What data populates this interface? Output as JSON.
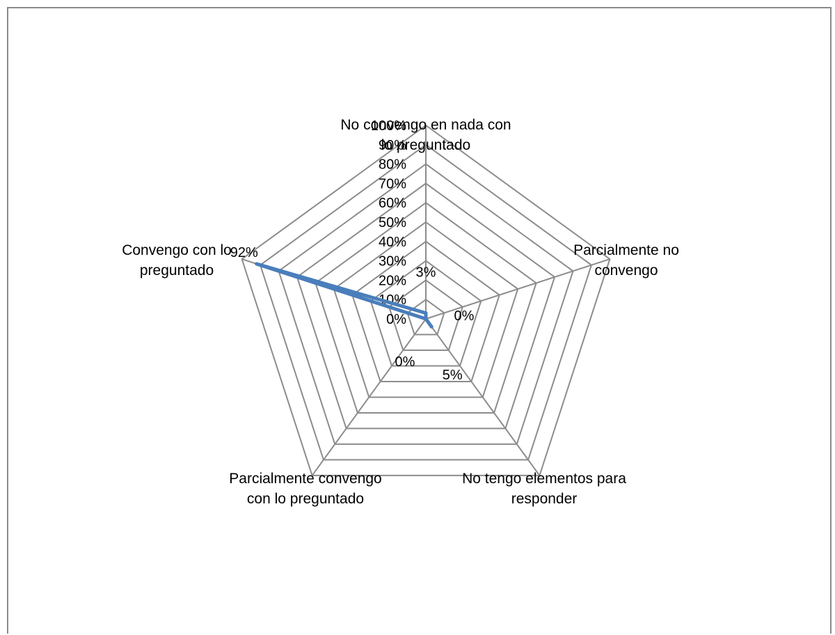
{
  "chart_data": {
    "type": "radar",
    "categories": [
      "No convengo en nada con lo preguntado",
      "Parcialmente no convengo",
      "No tengo elementos para responder",
      "Parcialmente convengo con lo preguntado",
      "Convengo con lo preguntado"
    ],
    "category_lines": [
      [
        "No convengo en nada con",
        "lo preguntado"
      ],
      [
        "Parcialmente no",
        "convengo"
      ],
      [
        "No tengo elementos para",
        "responder"
      ],
      [
        "Parcialmente convengo",
        "con lo preguntado"
      ],
      [
        "Convengo con lo",
        "preguntado"
      ]
    ],
    "values": [
      3,
      0,
      5,
      0,
      92
    ],
    "data_labels": [
      "3%",
      "0%",
      "5%",
      "0%",
      "92%"
    ],
    "rlim": [
      0,
      100
    ],
    "ticks": [
      0,
      10,
      20,
      30,
      40,
      50,
      60,
      70,
      80,
      90,
      100
    ],
    "tick_labels": [
      "0%",
      "10%",
      "20%",
      "30%",
      "40%",
      "50%",
      "60%",
      "70%",
      "80%",
      "90%",
      "100%"
    ],
    "series_color": "#4a7ebb",
    "grid_color": "#8c8c8c",
    "legend": "none"
  }
}
